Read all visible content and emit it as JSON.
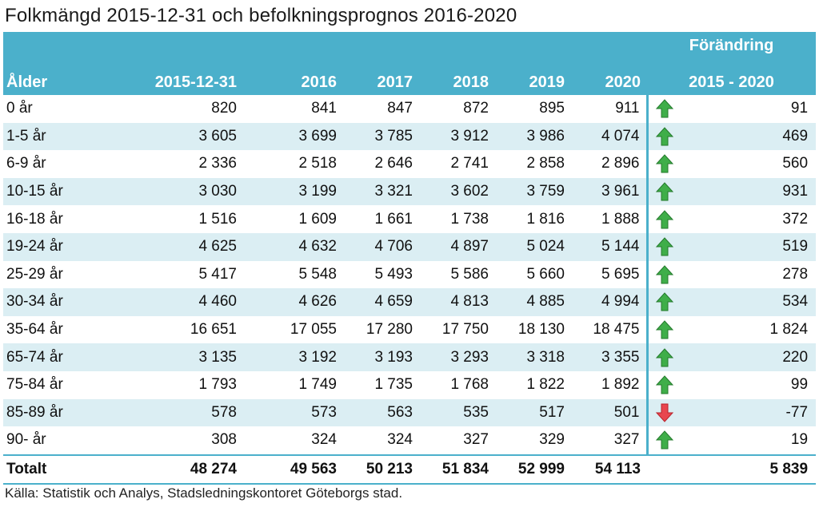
{
  "title": "Folkmängd 2015-12-31 och befolkningsprognos 2016-2020",
  "header": {
    "age": "Ålder",
    "years": [
      "2015-12-31",
      "2016",
      "2017",
      "2018",
      "2019",
      "2020"
    ],
    "change_top": "Förändring",
    "change_bottom": "2015 - 2020"
  },
  "rows": [
    {
      "age": "0 år",
      "values": [
        "820",
        "841",
        "847",
        "872",
        "895",
        "911"
      ],
      "direction": "up",
      "change": "91"
    },
    {
      "age": "1-5 år",
      "values": [
        "3 605",
        "3 699",
        "3 785",
        "3 912",
        "3 986",
        "4 074"
      ],
      "direction": "up",
      "change": "469"
    },
    {
      "age": "6-9 år",
      "values": [
        "2 336",
        "2 518",
        "2 646",
        "2 741",
        "2 858",
        "2 896"
      ],
      "direction": "up",
      "change": "560"
    },
    {
      "age": "10-15 år",
      "values": [
        "3 030",
        "3 199",
        "3 321",
        "3 602",
        "3 759",
        "3 961"
      ],
      "direction": "up",
      "change": "931"
    },
    {
      "age": "16-18 år",
      "values": [
        "1 516",
        "1 609",
        "1 661",
        "1 738",
        "1 816",
        "1 888"
      ],
      "direction": "up",
      "change": "372"
    },
    {
      "age": "19-24 år",
      "values": [
        "4 625",
        "4 632",
        "4 706",
        "4 897",
        "5 024",
        "5 144"
      ],
      "direction": "up",
      "change": "519"
    },
    {
      "age": "25-29 år",
      "values": [
        "5 417",
        "5 548",
        "5 493",
        "5 586",
        "5 660",
        "5 695"
      ],
      "direction": "up",
      "change": "278"
    },
    {
      "age": "30-34 år",
      "values": [
        "4 460",
        "4 626",
        "4 659",
        "4 813",
        "4 885",
        "4 994"
      ],
      "direction": "up",
      "change": "534"
    },
    {
      "age": "35-64 år",
      "values": [
        "16 651",
        "17 055",
        "17 280",
        "17 750",
        "18 130",
        "18 475"
      ],
      "direction": "up",
      "change": "1 824"
    },
    {
      "age": "65-74 år",
      "values": [
        "3 135",
        "3 192",
        "3 193",
        "3 293",
        "3 318",
        "3 355"
      ],
      "direction": "up",
      "change": "220"
    },
    {
      "age": "75-84 år",
      "values": [
        "1 793",
        "1 749",
        "1 735",
        "1 768",
        "1 822",
        "1 892"
      ],
      "direction": "up",
      "change": "99"
    },
    {
      "age": "85-89 år",
      "values": [
        "578",
        "573",
        "563",
        "535",
        "517",
        "501"
      ],
      "direction": "down",
      "change": "-77"
    },
    {
      "age": "90- år",
      "values": [
        "308",
        "324",
        "324",
        "327",
        "329",
        "327"
      ],
      "direction": "up",
      "change": "19"
    }
  ],
  "total": {
    "label": "Totalt",
    "values": [
      "48 274",
      "49 563",
      "50 213",
      "51 834",
      "52 999",
      "54 113"
    ],
    "change": "5 839"
  },
  "source": "Källa:  Statistik och Analys, Stadsledningskontoret Göteborgs stad.",
  "colors": {
    "header": "#4bb0cb",
    "stripe": "#dbeef3",
    "up": "#3fae49",
    "down": "#e8464f"
  },
  "chart_data": {
    "type": "table",
    "title": "Folkmängd 2015-12-31 och befolkningsprognos 2016-2020",
    "columns": [
      "Ålder",
      "2015-12-31",
      "2016",
      "2017",
      "2018",
      "2019",
      "2020",
      "Förändring 2015 - 2020"
    ],
    "rows": [
      [
        "0 år",
        820,
        841,
        847,
        872,
        895,
        911,
        91
      ],
      [
        "1-5 år",
        3605,
        3699,
        3785,
        3912,
        3986,
        4074,
        469
      ],
      [
        "6-9 år",
        2336,
        2518,
        2646,
        2741,
        2858,
        2896,
        560
      ],
      [
        "10-15 år",
        3030,
        3199,
        3321,
        3602,
        3759,
        3961,
        931
      ],
      [
        "16-18 år",
        1516,
        1609,
        1661,
        1738,
        1816,
        1888,
        372
      ],
      [
        "19-24 år",
        4625,
        4632,
        4706,
        4897,
        5024,
        5144,
        519
      ],
      [
        "25-29 år",
        5417,
        5548,
        5493,
        5586,
        5660,
        5695,
        278
      ],
      [
        "30-34 år",
        4460,
        4626,
        4659,
        4813,
        4885,
        4994,
        534
      ],
      [
        "35-64 år",
        16651,
        17055,
        17280,
        17750,
        18130,
        18475,
        1824
      ],
      [
        "65-74 år",
        3135,
        3192,
        3193,
        3293,
        3318,
        3355,
        220
      ],
      [
        "75-84 år",
        1793,
        1749,
        1735,
        1768,
        1822,
        1892,
        99
      ],
      [
        "85-89 år",
        578,
        573,
        563,
        535,
        517,
        501,
        -77
      ],
      [
        "90- år",
        308,
        324,
        324,
        327,
        329,
        327,
        19
      ],
      [
        "Totalt",
        48274,
        49563,
        50213,
        51834,
        52999,
        54113,
        5839
      ]
    ]
  }
}
